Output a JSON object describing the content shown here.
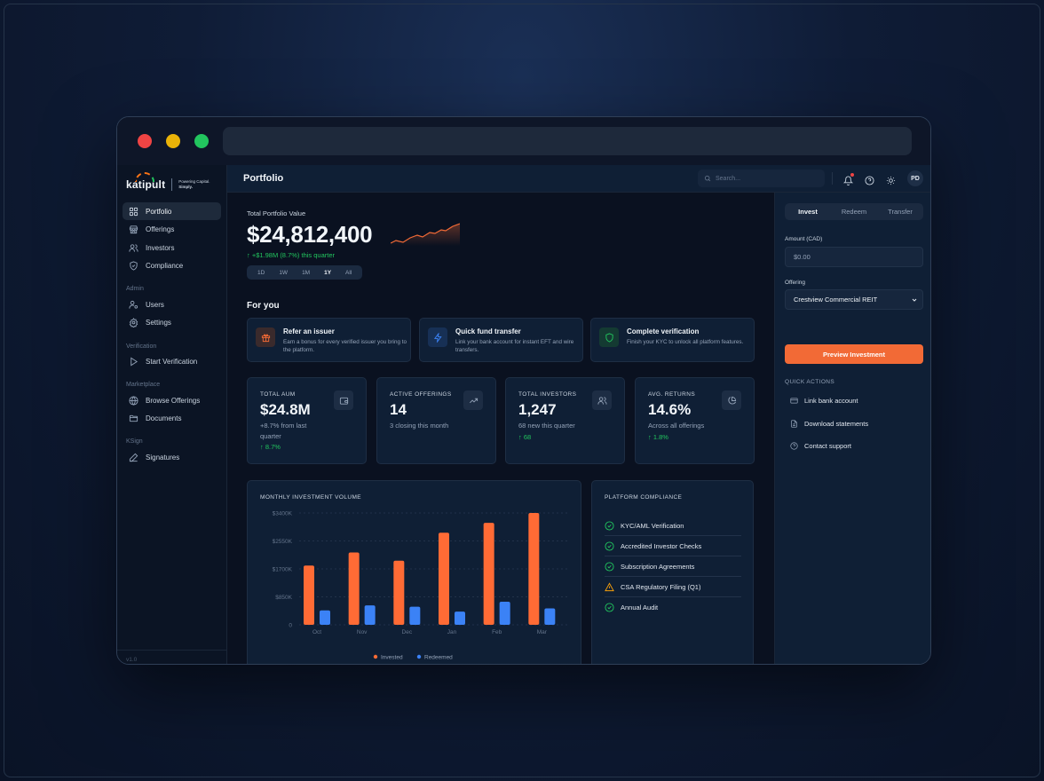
{
  "window": {
    "controls": [
      "close",
      "minimize",
      "maximize"
    ],
    "url": ""
  },
  "brand": {
    "name": "katipult",
    "tagline_1": "Powering Capital.",
    "tagline_2": "Simply."
  },
  "sidebar": {
    "primary": [
      {
        "label": "Portfolio",
        "icon": "grid-icon",
        "active": true
      },
      {
        "label": "Offerings",
        "icon": "store-icon"
      },
      {
        "label": "Investors",
        "icon": "users-icon"
      },
      {
        "label": "Compliance",
        "icon": "shield-check-icon"
      }
    ],
    "sections": [
      {
        "title": "Admin",
        "items": [
          {
            "label": "Users",
            "icon": "user-cog-icon"
          },
          {
            "label": "Settings",
            "icon": "gear-icon"
          }
        ]
      },
      {
        "title": "Verification",
        "items": [
          {
            "label": "Start Verification",
            "icon": "play-icon"
          }
        ]
      },
      {
        "title": "Marketplace",
        "items": [
          {
            "label": "Browse Offerings",
            "icon": "globe-icon"
          },
          {
            "label": "Documents",
            "icon": "folder-icon"
          }
        ]
      },
      {
        "title": "KSign",
        "items": [
          {
            "label": "Signatures",
            "icon": "pen-icon"
          }
        ]
      }
    ],
    "version": "v1.0"
  },
  "topbar": {
    "title": "Portfolio",
    "search_placeholder": "Search...",
    "avatar_initials": "PD"
  },
  "portfolio": {
    "label": "Total Portfolio Value",
    "value": "$24,812,400",
    "change": "↑ +$1.98M (8.7%) this quarter",
    "ranges": [
      "1D",
      "1W",
      "1M",
      "1Y",
      "All"
    ],
    "active_range": "1Y"
  },
  "for_you": {
    "title": "For you",
    "cards": [
      {
        "title": "Refer an issuer",
        "desc": "Earn a bonus for every verified issuer you bring to the platform.",
        "icon": "gift-icon"
      },
      {
        "title": "Quick fund transfer",
        "desc": "Link your bank account for instant EFT and wire transfers.",
        "icon": "lightning-icon"
      },
      {
        "title": "Complete verification",
        "desc": "Finish your KYC to unlock all platform features.",
        "icon": "shield-icon"
      }
    ]
  },
  "stats": [
    {
      "label": "TOTAL AUM",
      "value": "$24.8M",
      "sub": "+8.7% from last quarter",
      "delta": "↑ 8.7%",
      "icon": "wallet-icon"
    },
    {
      "label": "ACTIVE OFFERINGS",
      "value": "14",
      "sub": "3 closing this month",
      "delta": "",
      "icon": "trending-up-icon"
    },
    {
      "label": "TOTAL INVESTORS",
      "value": "1,247",
      "sub": "68 new this quarter",
      "delta": "↑ 68",
      "icon": "users-icon"
    },
    {
      "label": "AVG. RETURNS",
      "value": "14.6%",
      "sub": "Across all offerings",
      "delta": "↑ 1.8%",
      "icon": "pie-chart-icon"
    }
  ],
  "chart_data": {
    "type": "bar",
    "title": "MONTHLY INVESTMENT VOLUME",
    "categories": [
      "Oct",
      "Nov",
      "Dec",
      "Jan",
      "Feb",
      "Mar"
    ],
    "series": [
      {
        "name": "Invested",
        "color": "#ff6b35",
        "values": [
          1800,
          2200,
          1950,
          2800,
          3100,
          3400
        ]
      },
      {
        "name": "Redeemed",
        "color": "#3b82f6",
        "values": [
          440,
          590,
          550,
          400,
          700,
          500
        ]
      }
    ],
    "yticks": [
      0,
      850,
      1700,
      2550,
      3400
    ],
    "ytick_labels": [
      "0",
      "$850K",
      "$1700K",
      "$2550K",
      "$3400K"
    ],
    "ylim": [
      0,
      3400
    ],
    "xlabel": "",
    "ylabel": "",
    "grid": true,
    "legend_position": "bottom"
  },
  "compliance": {
    "title": "PLATFORM COMPLIANCE",
    "items": [
      {
        "label": "KYC/AML Verification",
        "status": "complete"
      },
      {
        "label": "Accredited Investor Checks",
        "status": "complete"
      },
      {
        "label": "Subscription Agreements",
        "status": "complete"
      },
      {
        "label": "CSA Regulatory Filing (Q1)",
        "status": "warning"
      },
      {
        "label": "Annual Audit",
        "status": "complete"
      }
    ]
  },
  "right_panel": {
    "tabs": [
      "Invest",
      "Redeem",
      "Transfer"
    ],
    "active_tab": "Invest",
    "amount_label": "Amount (CAD)",
    "amount_placeholder": "$0.00",
    "offering_label": "Offering",
    "offering_value": "Crestview Commercial REIT",
    "cta": "Preview Investment",
    "quick_actions_title": "QUICK ACTIONS",
    "quick_actions": [
      {
        "label": "Link bank account",
        "icon": "credit-card-icon"
      },
      {
        "label": "Download statements",
        "icon": "file-icon"
      },
      {
        "label": "Contact support",
        "icon": "help-circle-icon"
      }
    ]
  },
  "colors": {
    "accent": "#f26a36",
    "success": "#22c55e",
    "warning": "#f59e0b",
    "redeemed": "#3b82f6"
  }
}
